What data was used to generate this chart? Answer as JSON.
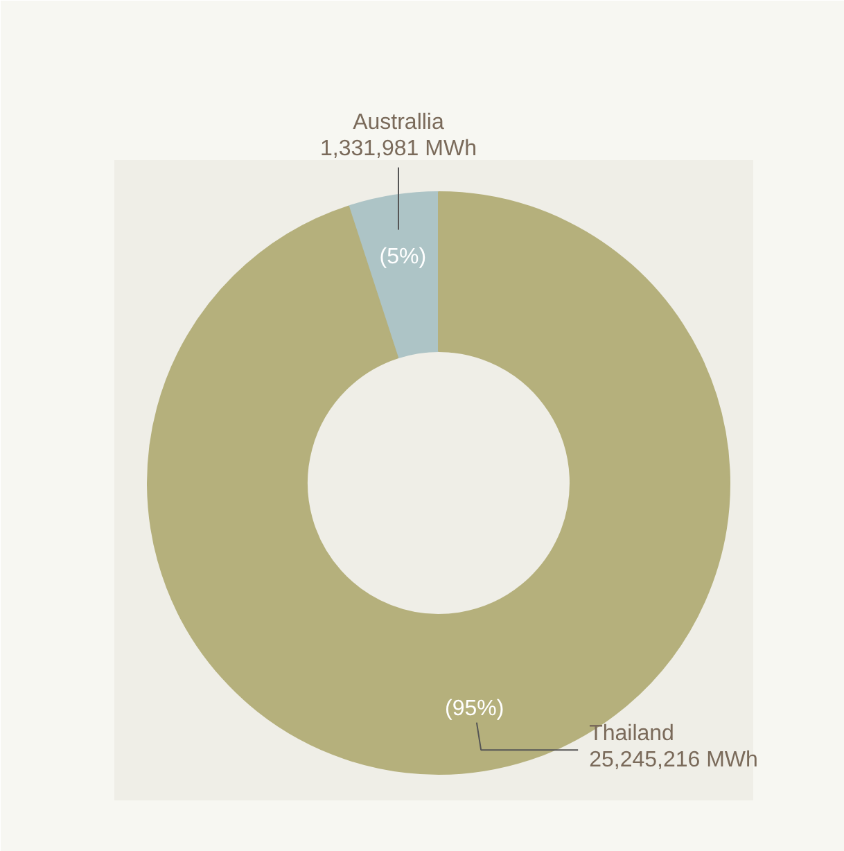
{
  "chart_data": {
    "type": "donut",
    "categories": [
      "Thailand",
      "Australlia"
    ],
    "values": [
      25245216,
      1331981
    ],
    "colors": [
      "#b5b07c",
      "#adc4c6"
    ],
    "value_labels": [
      "25,245,216 MWh",
      "1,331,981 MWh"
    ],
    "annotations": [
      {
        "text": "(95%)",
        "x": "Thailand"
      },
      {
        "text": "(5%)",
        "x": "Australlia"
      }
    ]
  }
}
